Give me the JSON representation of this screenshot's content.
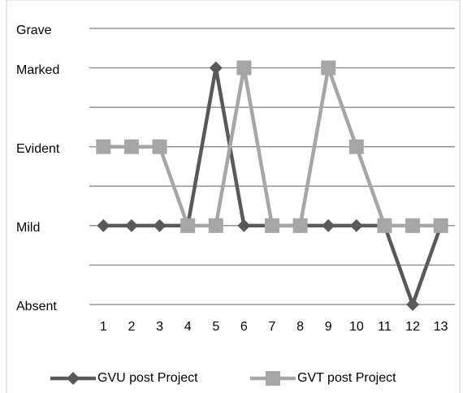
{
  "chart_data": {
    "type": "line",
    "categories": [
      "1",
      "2",
      "3",
      "4",
      "5",
      "6",
      "7",
      "8",
      "9",
      "10",
      "11",
      "12",
      "13"
    ],
    "series": [
      {
        "name": "GVU post Project",
        "color": "#595959",
        "marker": "diamond",
        "values": [
          2,
          2,
          2,
          2,
          6,
          2,
          2,
          2,
          2,
          2,
          2,
          0,
          2
        ]
      },
      {
        "name": "GVT post Project",
        "color": "#a6a6a6",
        "marker": "square",
        "values": [
          4,
          4,
          4,
          2,
          2,
          6,
          2,
          2,
          6,
          4,
          2,
          2,
          2
        ]
      }
    ],
    "ylim": [
      0,
      7
    ],
    "yticks": [
      {
        "value": 0,
        "label": "Absent"
      },
      {
        "value": 2,
        "label": "Mild"
      },
      {
        "value": 4,
        "label": "Evident"
      },
      {
        "value": 6,
        "label": "Marked"
      },
      {
        "value": 7,
        "label": "Grave"
      }
    ],
    "minor_yticks": [
      1,
      3,
      5
    ],
    "grid": true,
    "legend": "bottom"
  }
}
